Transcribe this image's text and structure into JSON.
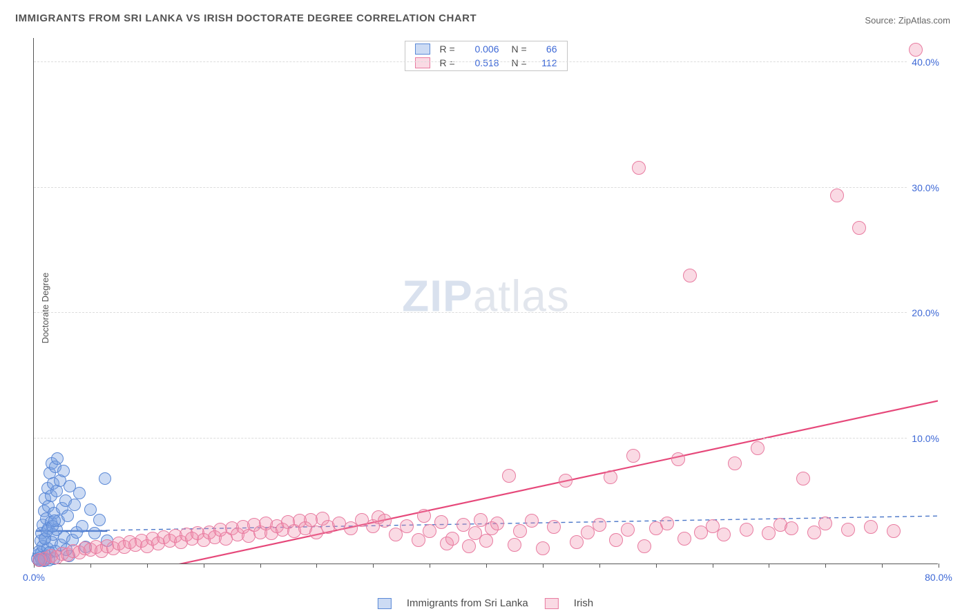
{
  "title": "IMMIGRANTS FROM SRI LANKA VS IRISH DOCTORATE DEGREE CORRELATION CHART",
  "source_label": "Source:",
  "source_name": "ZipAtlas.com",
  "yaxis_label": "Doctorate Degree",
  "watermark_a": "ZIP",
  "watermark_b": "atlas",
  "chart": {
    "type": "scatter",
    "xlim": [
      0,
      80
    ],
    "ylim": [
      0,
      42
    ],
    "yticks": [
      10,
      20,
      30,
      40
    ],
    "ytick_labels": [
      "10.0%",
      "20.0%",
      "30.0%",
      "40.0%"
    ],
    "xtick_step": 5,
    "xtick_labels_shown": {
      "0": "0.0%",
      "80": "80.0%"
    },
    "grid_color": "#dcdcdc",
    "background_color": "#ffffff",
    "axis_color": "#555555",
    "tick_label_color": "#3d68d6",
    "series": [
      {
        "id": "sri_lanka",
        "label": "Immigrants from Sri Lanka",
        "marker_fill": "rgba(120,160,225,0.38)",
        "marker_stroke": "#5a88d6",
        "marker_radius": 9,
        "line_color": "#4a76c8",
        "line_dash": "6,5",
        "line_width": 1.4,
        "trend": {
          "x1": 3,
          "y1": 2.6,
          "x2": 80,
          "y2": 3.8
        },
        "solid_segment": {
          "x1": 0.2,
          "y1": 2.6,
          "x2": 6.5,
          "y2": 2.6,
          "width": 2.5
        },
        "R": "0.006",
        "N": "66",
        "points": [
          [
            0.3,
            0.4
          ],
          [
            0.4,
            0.7
          ],
          [
            0.5,
            0.3
          ],
          [
            0.5,
            1.0
          ],
          [
            0.6,
            1.8
          ],
          [
            0.6,
            0.5
          ],
          [
            0.7,
            2.4
          ],
          [
            0.7,
            0.9
          ],
          [
            0.8,
            3.1
          ],
          [
            0.8,
            1.4
          ],
          [
            0.9,
            0.2
          ],
          [
            0.9,
            4.2
          ],
          [
            1.0,
            2.0
          ],
          [
            1.0,
            5.2
          ],
          [
            1.1,
            3.6
          ],
          [
            1.1,
            0.6
          ],
          [
            1.2,
            6.0
          ],
          [
            1.2,
            1.2
          ],
          [
            1.3,
            4.6
          ],
          [
            1.3,
            2.8
          ],
          [
            1.4,
            7.2
          ],
          [
            1.4,
            0.9
          ],
          [
            1.5,
            3.3
          ],
          [
            1.5,
            5.4
          ],
          [
            1.6,
            1.7
          ],
          [
            1.6,
            8.0
          ],
          [
            1.7,
            2.3
          ],
          [
            1.7,
            6.4
          ],
          [
            1.8,
            0.4
          ],
          [
            1.8,
            4.0
          ],
          [
            1.9,
            7.7
          ],
          [
            1.9,
            1.0
          ],
          [
            2.0,
            2.7
          ],
          [
            2.0,
            5.8
          ],
          [
            2.1,
            8.4
          ],
          [
            2.2,
            3.4
          ],
          [
            2.3,
            6.6
          ],
          [
            2.4,
            1.5
          ],
          [
            2.5,
            4.4
          ],
          [
            2.6,
            7.4
          ],
          [
            2.7,
            2.1
          ],
          [
            2.8,
            5.0
          ],
          [
            3.0,
            3.8
          ],
          [
            3.2,
            6.2
          ],
          [
            3.4,
            1.9
          ],
          [
            3.6,
            4.7
          ],
          [
            3.8,
            2.5
          ],
          [
            4.0,
            5.6
          ],
          [
            4.3,
            3.0
          ],
          [
            4.6,
            1.3
          ],
          [
            5.0,
            4.3
          ],
          [
            5.4,
            2.4
          ],
          [
            5.8,
            3.5
          ],
          [
            6.3,
            6.8
          ],
          [
            6.5,
            1.8
          ],
          [
            3.1,
            0.6
          ],
          [
            2.9,
            1.1
          ],
          [
            1.35,
            0.3
          ],
          [
            1.05,
            0.35
          ],
          [
            0.85,
            0.25
          ],
          [
            0.65,
            0.35
          ],
          [
            0.45,
            0.25
          ],
          [
            0.95,
            2.0
          ],
          [
            1.15,
            2.6
          ],
          [
            1.65,
            3.0
          ],
          [
            1.85,
            3.4
          ]
        ]
      },
      {
        "id": "irish",
        "label": "Irish",
        "marker_fill": "rgba(240,140,170,0.32)",
        "marker_stroke": "#e87ba0",
        "marker_radius": 10,
        "line_color": "#e6487a",
        "line_dash": "",
        "line_width": 2.2,
        "trend": {
          "x1": 8,
          "y1": -1.0,
          "x2": 80,
          "y2": 13.0
        },
        "R": "0.518",
        "N": "112",
        "points": [
          [
            0.5,
            0.3
          ],
          [
            1.0,
            0.4
          ],
          [
            1.5,
            0.6
          ],
          [
            2.0,
            0.5
          ],
          [
            2.5,
            0.8
          ],
          [
            3.0,
            0.7
          ],
          [
            3.5,
            1.0
          ],
          [
            4.0,
            0.9
          ],
          [
            4.5,
            1.2
          ],
          [
            5.0,
            1.1
          ],
          [
            5.5,
            1.3
          ],
          [
            6.0,
            1.0
          ],
          [
            6.5,
            1.4
          ],
          [
            7.0,
            1.2
          ],
          [
            7.5,
            1.6
          ],
          [
            8.0,
            1.3
          ],
          [
            8.5,
            1.7
          ],
          [
            9.0,
            1.5
          ],
          [
            9.5,
            1.8
          ],
          [
            10.0,
            1.4
          ],
          [
            10.5,
            2.0
          ],
          [
            11.0,
            1.6
          ],
          [
            11.5,
            2.1
          ],
          [
            12.0,
            1.8
          ],
          [
            12.5,
            2.2
          ],
          [
            13.0,
            1.7
          ],
          [
            13.5,
            2.3
          ],
          [
            14.0,
            2.0
          ],
          [
            14.5,
            2.4
          ],
          [
            15.0,
            1.9
          ],
          [
            15.5,
            2.5
          ],
          [
            16.0,
            2.1
          ],
          [
            16.5,
            2.7
          ],
          [
            17.0,
            2.0
          ],
          [
            17.5,
            2.8
          ],
          [
            18.0,
            2.3
          ],
          [
            18.5,
            2.9
          ],
          [
            19.0,
            2.2
          ],
          [
            19.5,
            3.1
          ],
          [
            20.0,
            2.5
          ],
          [
            20.5,
            3.2
          ],
          [
            21.0,
            2.4
          ],
          [
            21.5,
            3.0
          ],
          [
            22.0,
            2.7
          ],
          [
            22.5,
            3.3
          ],
          [
            23.0,
            2.6
          ],
          [
            23.5,
            3.4
          ],
          [
            24.0,
            2.8
          ],
          [
            24.5,
            3.5
          ],
          [
            25.0,
            2.5
          ],
          [
            25.5,
            3.6
          ],
          [
            26.0,
            2.9
          ],
          [
            27.0,
            3.2
          ],
          [
            28.0,
            2.8
          ],
          [
            29.0,
            3.5
          ],
          [
            30.0,
            3.0
          ],
          [
            30.5,
            3.7
          ],
          [
            31.0,
            3.4
          ],
          [
            32.0,
            2.3
          ],
          [
            33.0,
            3.0
          ],
          [
            34.0,
            1.9
          ],
          [
            34.5,
            3.8
          ],
          [
            35.0,
            2.6
          ],
          [
            36.0,
            3.3
          ],
          [
            36.5,
            1.6
          ],
          [
            37.0,
            2.0
          ],
          [
            38.0,
            3.1
          ],
          [
            38.5,
            1.4
          ],
          [
            39.0,
            2.4
          ],
          [
            39.5,
            3.5
          ],
          [
            40.0,
            1.8
          ],
          [
            40.5,
            2.8
          ],
          [
            41.0,
            3.2
          ],
          [
            42.0,
            7.0
          ],
          [
            42.5,
            1.5
          ],
          [
            43.0,
            2.6
          ],
          [
            44.0,
            3.4
          ],
          [
            45.0,
            1.2
          ],
          [
            46.0,
            2.9
          ],
          [
            47.0,
            6.6
          ],
          [
            48.0,
            1.7
          ],
          [
            49.0,
            2.5
          ],
          [
            50.0,
            3.1
          ],
          [
            51.0,
            6.9
          ],
          [
            51.5,
            1.9
          ],
          [
            52.5,
            2.7
          ],
          [
            53.0,
            8.6
          ],
          [
            53.5,
            31.6
          ],
          [
            54.0,
            1.4
          ],
          [
            55.0,
            2.8
          ],
          [
            56.0,
            3.2
          ],
          [
            57.0,
            8.3
          ],
          [
            57.5,
            2.0
          ],
          [
            58.0,
            23.0
          ],
          [
            59.0,
            2.5
          ],
          [
            60.0,
            3.0
          ],
          [
            61.0,
            2.3
          ],
          [
            62.0,
            8.0
          ],
          [
            63.0,
            2.7
          ],
          [
            64.0,
            9.2
          ],
          [
            65.0,
            2.4
          ],
          [
            66.0,
            3.1
          ],
          [
            67.0,
            2.8
          ],
          [
            68.0,
            6.8
          ],
          [
            69.0,
            2.5
          ],
          [
            70.0,
            3.2
          ],
          [
            71.0,
            29.4
          ],
          [
            72.0,
            2.7
          ],
          [
            73.0,
            26.8
          ],
          [
            74.0,
            2.9
          ],
          [
            76.0,
            2.6
          ],
          [
            78.0,
            41.0
          ]
        ]
      }
    ]
  },
  "legend_top": {
    "r_label": "R =",
    "n_label": "N ="
  }
}
